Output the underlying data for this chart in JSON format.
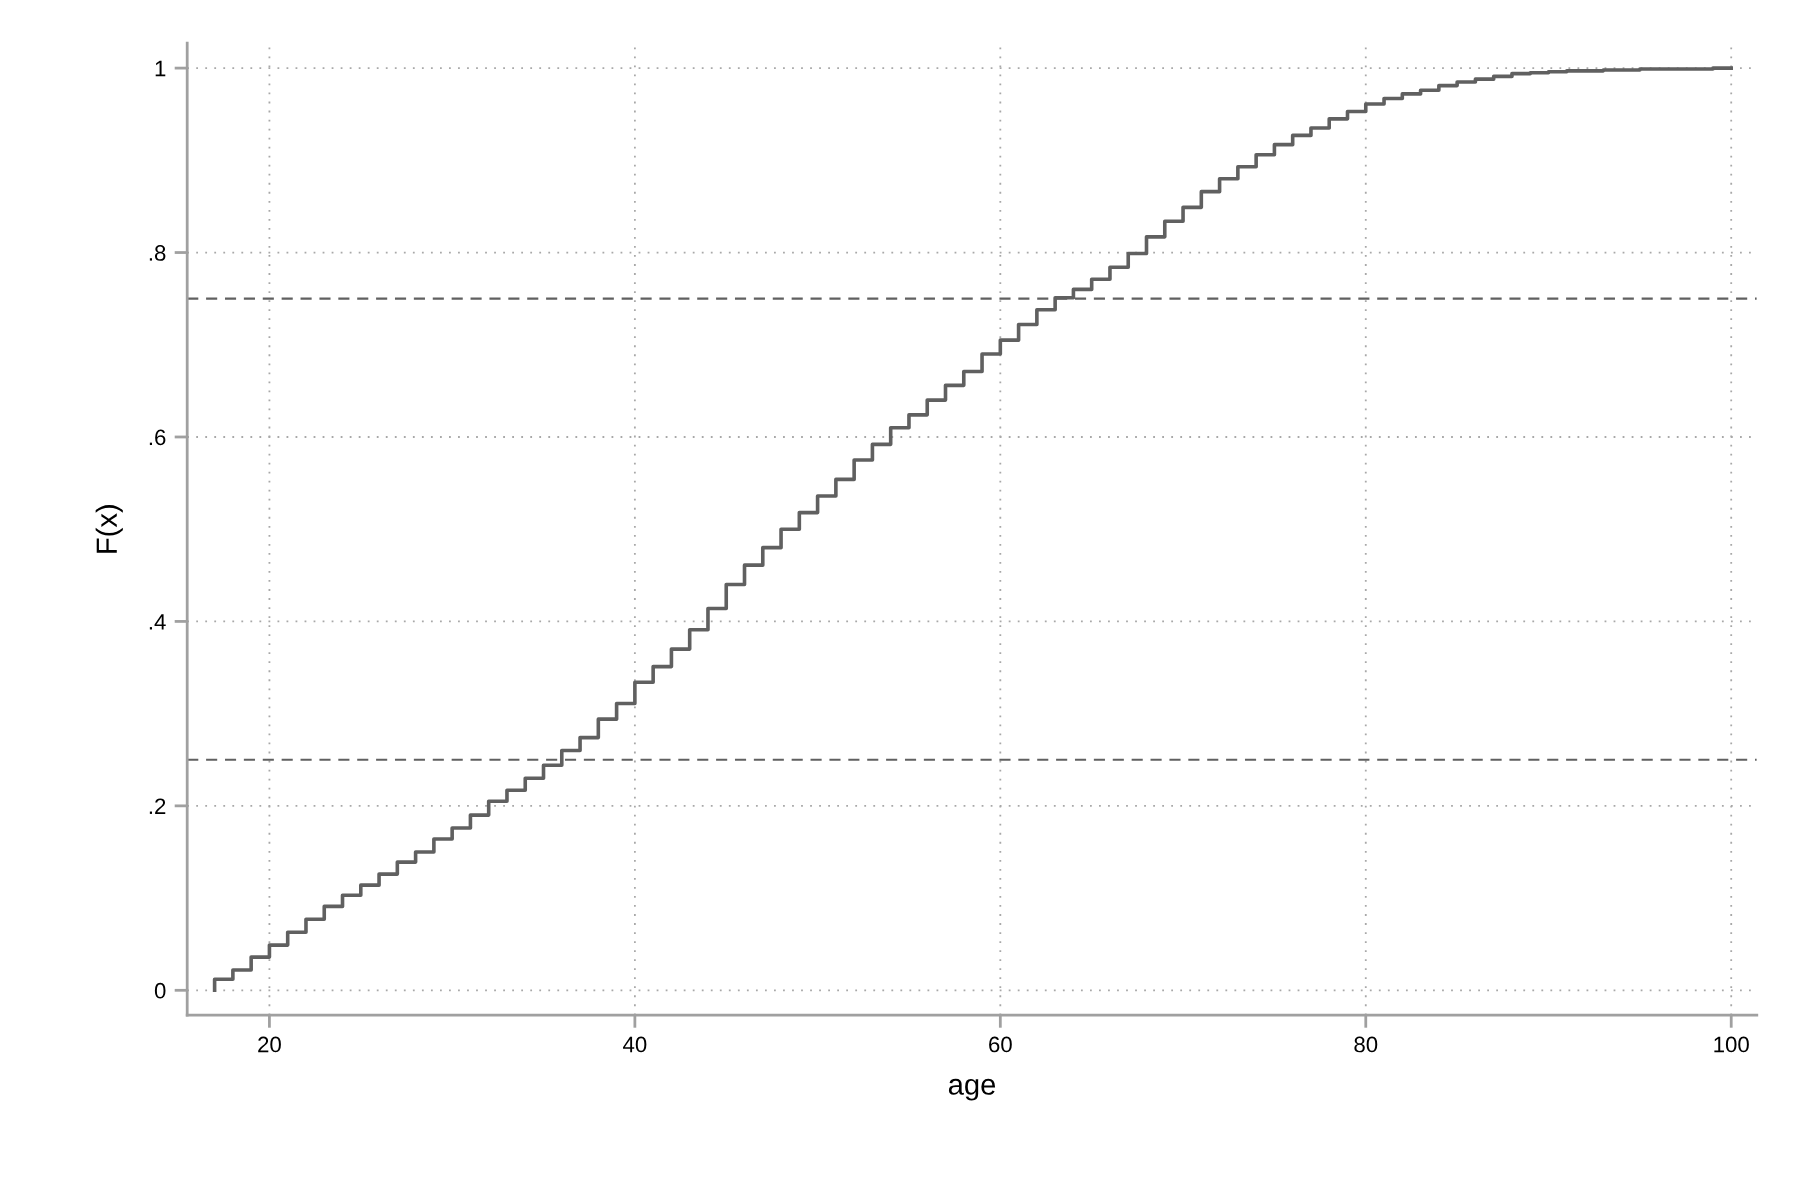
{
  "chart_data": {
    "type": "step",
    "xlabel": "age",
    "ylabel": "F(x)",
    "x": [
      17,
      17,
      18,
      19,
      20,
      21,
      22,
      23,
      24,
      25,
      26,
      27,
      28,
      29,
      30,
      31,
      32,
      33,
      34,
      35,
      36,
      37,
      38,
      39,
      40,
      41,
      42,
      43,
      44,
      45,
      46,
      47,
      48,
      49,
      50,
      51,
      52,
      53,
      54,
      55,
      56,
      57,
      58,
      59,
      60,
      61,
      62,
      63,
      64,
      65,
      66,
      67,
      68,
      69,
      70,
      71,
      72,
      73,
      74,
      75,
      76,
      77,
      78,
      79,
      80,
      81,
      82,
      83,
      84,
      85,
      86,
      87,
      88,
      89,
      90,
      91,
      92,
      93,
      94,
      95,
      96,
      97,
      98,
      99,
      100
    ],
    "series": [
      {
        "color": "#606060",
        "values": [
          0,
          0.012,
          0.022,
          0.036,
          0.049,
          0.063,
          0.077,
          0.091,
          0.103,
          0.114,
          0.126,
          0.139,
          0.15,
          0.164,
          0.176,
          0.19,
          0.205,
          0.217,
          0.23,
          0.244,
          0.26,
          0.274,
          0.294,
          0.311,
          0.334,
          0.351,
          0.37,
          0.391,
          0.414,
          0.44,
          0.461,
          0.48,
          0.5,
          0.518,
          0.536,
          0.554,
          0.575,
          0.592,
          0.61,
          0.624,
          0.64,
          0.656,
          0.671,
          0.69,
          0.705,
          0.722,
          0.738,
          0.751,
          0.76,
          0.771,
          0.784,
          0.799,
          0.817,
          0.834,
          0.849,
          0.866,
          0.88,
          0.893,
          0.906,
          0.917,
          0.927,
          0.935,
          0.945,
          0.953,
          0.961,
          0.967,
          0.972,
          0.976,
          0.981,
          0.985,
          0.988,
          0.991,
          0.994,
          0.995,
          0.996,
          0.997,
          0.997,
          0.998,
          0.998,
          0.999,
          0.999,
          0.999,
          0.999,
          1.0,
          1.0
        ]
      }
    ],
    "xlim": [
      15.5,
      101.4
    ],
    "ylim": [
      -0.027,
      1.027
    ],
    "xticks": [
      20,
      40,
      60,
      80,
      100
    ],
    "yticks": [
      0,
      {
        "value": 0.2,
        "label": ".2"
      },
      {
        "value": 0.4,
        "label": ".4"
      },
      {
        "value": 0.6,
        "label": ".6"
      },
      {
        "value": 0.8,
        "label": ".8"
      },
      1
    ],
    "grid": true,
    "ref_lines": [
      {
        "axis": "y",
        "value": 0.25,
        "color": "#606060",
        "line_style": "dashed"
      },
      {
        "axis": "y",
        "value": 0.75,
        "color": "#606060",
        "line_style": "dashed"
      }
    ]
  }
}
